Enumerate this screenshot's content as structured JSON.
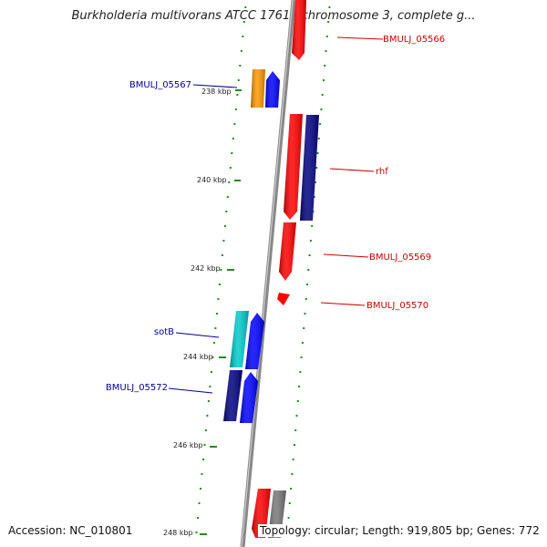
{
  "title": "Burkholderia multivorans ATCC 17616 chromosome 3, complete g...",
  "accession": "Accession: NC_010801",
  "info": "Topology: circular; Length: 919,805 bp; Genes: 772",
  "colors": {
    "forward_red": "#ff0000",
    "reverse_blue": "#0000ff",
    "dark_navy": "#000080",
    "orange": "#ff9900",
    "cyan": "#00cccc",
    "gray": "#777777",
    "tick_green": "#228b22",
    "backbone": "#888888",
    "label_red": "#cc0000",
    "label_blue": "#000099"
  },
  "kbp_labels": [
    "238 kbp",
    "240 kbp",
    "242 kbp",
    "244 kbp",
    "246 kbp",
    "248 kbp"
  ],
  "gene_labels": {
    "right": [
      "BMULJ_05566",
      "rhf",
      "BMULJ_05569",
      "BMULJ_05570"
    ],
    "left": [
      "BMULJ_05567",
      "sotB",
      "BMULJ_05572"
    ]
  },
  "icons": [
    "gene-arrow",
    "ruler-tick"
  ]
}
